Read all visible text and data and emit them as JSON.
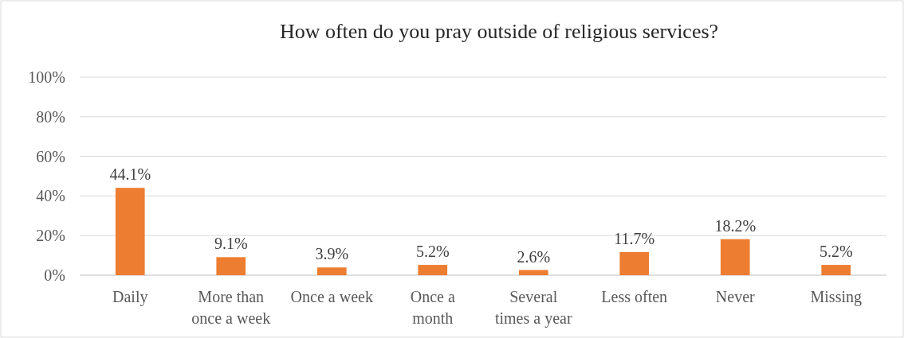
{
  "chart_data": {
    "type": "bar",
    "title": "How often do you pray outside of religious services?",
    "categories": [
      "Daily",
      "More than once a week",
      "Once a week",
      "Once a month",
      "Several times a year",
      "Less often",
      "Never",
      "Missing"
    ],
    "values": [
      44.1,
      9.1,
      3.9,
      5.2,
      2.6,
      11.7,
      18.2,
      5.2
    ],
    "value_labels": [
      "44.1%",
      "9.1%",
      "3.9%",
      "5.2%",
      "2.6%",
      "11.7%",
      "18.2%",
      "5.2%"
    ],
    "color": "#ed7d31",
    "ylim": [
      0,
      100
    ],
    "yticks": [
      {
        "value": 0,
        "label": "0%"
      },
      {
        "value": 20,
        "label": "20%"
      },
      {
        "value": 40,
        "label": "40%"
      },
      {
        "value": 60,
        "label": "60%"
      },
      {
        "value": 80,
        "label": "80%"
      },
      {
        "value": 100,
        "label": "100%"
      }
    ],
    "grid": "y"
  }
}
